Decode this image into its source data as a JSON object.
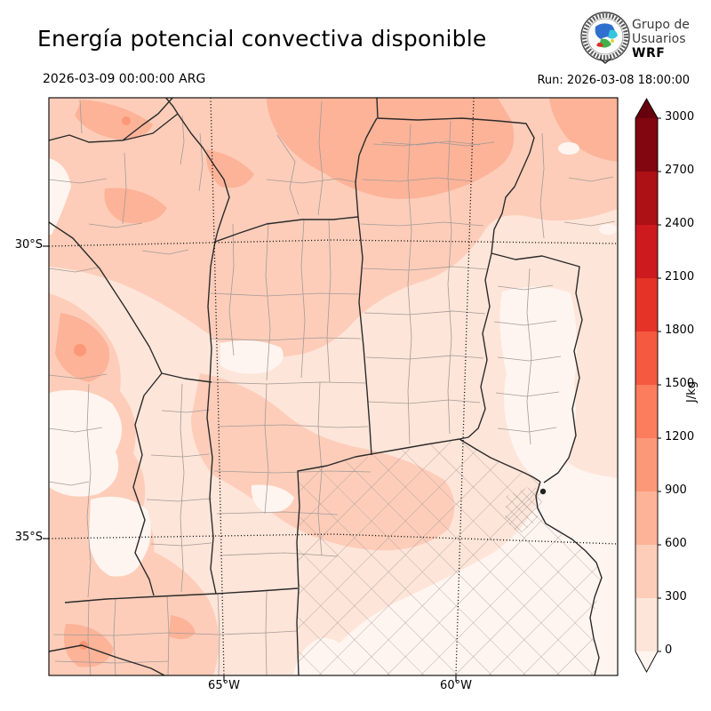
{
  "header": {
    "title": "Energía potencial convectiva disponible",
    "valid_time": "2026-03-09 00:00:00 ARG",
    "run_label": "Run: 2026-03-08 18:00:00",
    "logo": {
      "line1": "Grupo de",
      "line2": "Usuarios",
      "line3": "WRF",
      "colors": [
        "#2f6fce",
        "#35c5de",
        "#43b14b",
        "#d8352a",
        "#ded23f"
      ]
    }
  },
  "axes": {
    "y_ticks": [
      "30°S",
      "35°S"
    ],
    "x_ticks": [
      "65°W",
      "60°W"
    ]
  },
  "colorbar": {
    "unit": "J/kg",
    "levels": [
      0,
      300,
      600,
      900,
      1200,
      1500,
      1800,
      2100,
      2400,
      2700,
      3000
    ],
    "band_colors": [
      "#fee5d9",
      "#fdcdb9",
      "#fcb398",
      "#fc9877",
      "#fb7d5d",
      "#f5593f",
      "#e63328",
      "#cd1a1e",
      "#ad1015",
      "#81060f"
    ],
    "under_color": "#fff5f0",
    "over_color": "#67000d"
  },
  "chart_data": {
    "type": "heatmap",
    "title": "Energía potencial convectiva disponible",
    "units": "J/kg",
    "levels": [
      0,
      300,
      600,
      900,
      1200,
      1500,
      1800,
      2100,
      2400,
      2700,
      3000
    ],
    "colormap": "Reds",
    "region": "central Argentina",
    "lat_ticks_deg_S": [
      30,
      35
    ],
    "lon_ticks_deg_W": [
      65,
      60
    ],
    "field_summary": "CAPE mostly 0-900 J/kg; maxima 600-1200 J/kg over the north and northwest, near-zero over the southeast and Río de la Plata"
  }
}
